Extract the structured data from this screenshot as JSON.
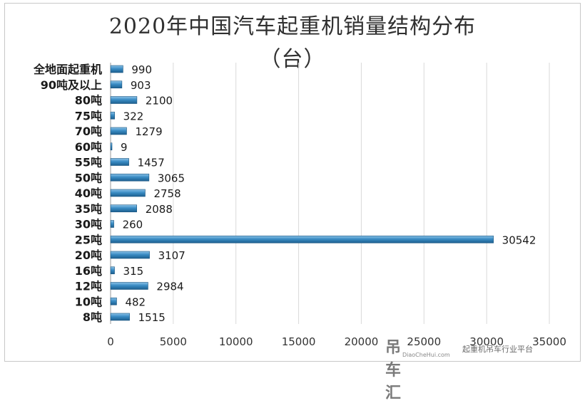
{
  "chart_data": {
    "type": "bar",
    "orientation": "horizontal",
    "title": "2020年中国汽车起重机销量结构分布",
    "subtitle": "（台）",
    "categories": [
      "全地面起重机",
      "90吨及以上",
      "80吨",
      "75吨",
      "70吨",
      "60吨",
      "55吨",
      "50吨",
      "40吨",
      "35吨",
      "30吨",
      "25吨",
      "20吨",
      "16吨",
      "12吨",
      "10吨",
      "8吨"
    ],
    "values": [
      990,
      903,
      2100,
      322,
      1279,
      9,
      1457,
      3065,
      2758,
      2088,
      260,
      30542,
      3107,
      315,
      2984,
      482,
      1515
    ],
    "x_ticks": [
      0,
      5000,
      10000,
      15000,
      20000,
      25000,
      30000,
      35000
    ],
    "xlim": [
      0,
      35000
    ],
    "grid": "vertical",
    "bar_color": "#3a8cc4",
    "data_labels": true
  },
  "watermark": {
    "logo_text": "吊车汇",
    "url_text": "DiaoCheHui.com",
    "slogan": "起重机吊车行业平台"
  }
}
